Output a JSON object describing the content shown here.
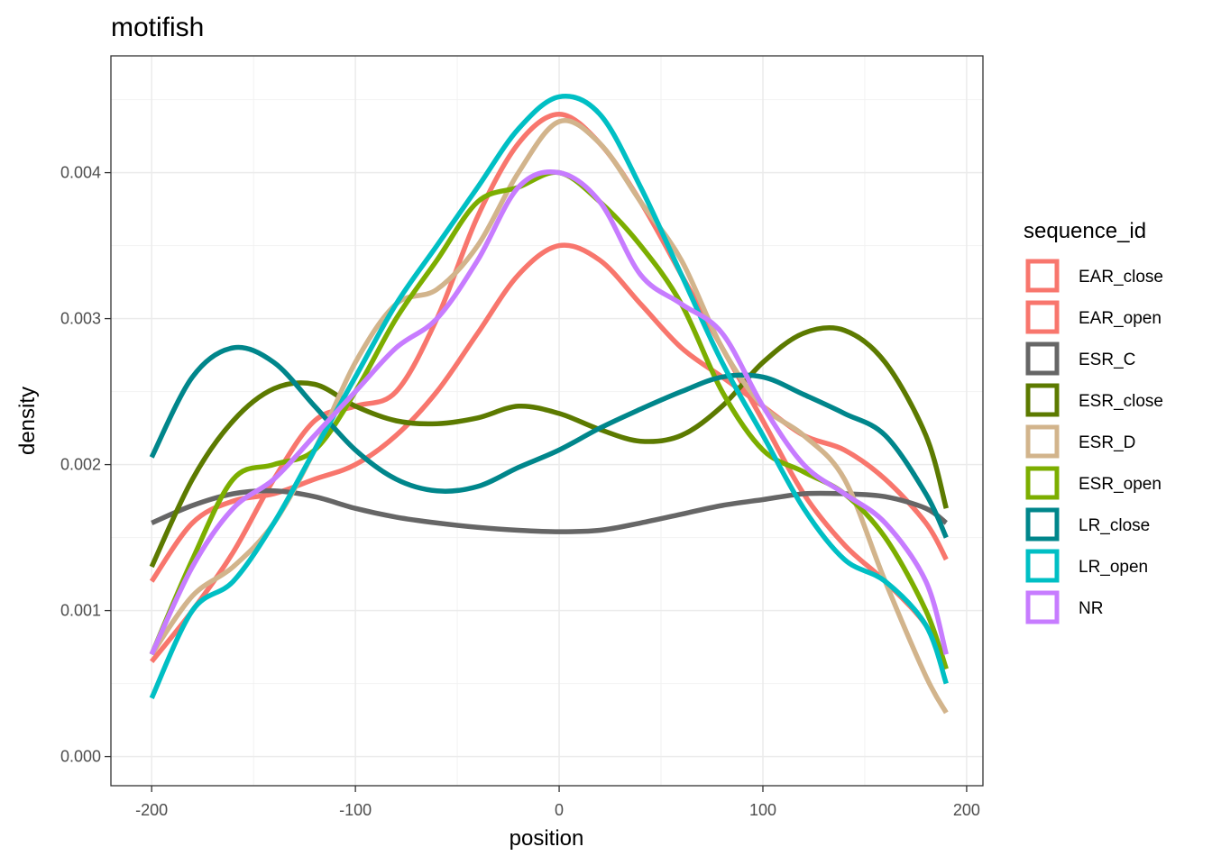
{
  "chart_data": {
    "type": "line",
    "title": "motifish",
    "xlabel": "position",
    "ylabel": "density",
    "xlim": [
      -220,
      208
    ],
    "ylim": [
      -0.0002,
      0.0048
    ],
    "x_ticks": [
      -200,
      -100,
      0,
      100,
      200
    ],
    "x_tick_labels": [
      "-200",
      "-100",
      "0",
      "100",
      "200"
    ],
    "y_ticks": [
      0,
      0.001,
      0.002,
      0.003,
      0.004
    ],
    "y_tick_labels": [
      "0.000",
      "0.001",
      "0.002",
      "0.003",
      "0.004"
    ],
    "grid": true,
    "legend_title": "sequence_id",
    "legend_position": "right",
    "series": [
      {
        "name": "EAR_close",
        "color": "#F8766D",
        "x": [
          -200,
          -180,
          -160,
          -140,
          -120,
          -100,
          -80,
          -60,
          -40,
          -20,
          0,
          20,
          40,
          60,
          80,
          100,
          120,
          140,
          160,
          180,
          190
        ],
        "y": [
          0.00065,
          0.001,
          0.0014,
          0.0019,
          0.0023,
          0.0024,
          0.0025,
          0.003,
          0.0037,
          0.0042,
          0.0044,
          0.0042,
          0.0038,
          0.0033,
          0.0028,
          0.0023,
          0.0018,
          0.00145,
          0.0012,
          0.0009,
          0.0006
        ]
      },
      {
        "name": "EAR_open",
        "color": "#F8766D",
        "x": [
          -200,
          -180,
          -160,
          -140,
          -120,
          -100,
          -80,
          -60,
          -40,
          -20,
          0,
          20,
          40,
          60,
          80,
          100,
          120,
          140,
          160,
          180,
          190
        ],
        "y": [
          0.0012,
          0.0016,
          0.00175,
          0.0018,
          0.0019,
          0.002,
          0.0022,
          0.0025,
          0.0029,
          0.0033,
          0.0035,
          0.0034,
          0.0031,
          0.0028,
          0.0026,
          0.0024,
          0.0022,
          0.0021,
          0.0019,
          0.0016,
          0.00135
        ]
      },
      {
        "name": "ESR_C",
        "color": "#666666",
        "x": [
          -200,
          -180,
          -160,
          -140,
          -120,
          -100,
          -80,
          -60,
          -40,
          -20,
          0,
          20,
          40,
          60,
          80,
          100,
          120,
          140,
          160,
          180,
          190
        ],
        "y": [
          0.0016,
          0.00172,
          0.0018,
          0.00182,
          0.00178,
          0.0017,
          0.00164,
          0.0016,
          0.00157,
          0.00155,
          0.00154,
          0.00155,
          0.0016,
          0.00166,
          0.00172,
          0.00176,
          0.0018,
          0.0018,
          0.00178,
          0.0017,
          0.0016
        ]
      },
      {
        "name": "ESR_close",
        "color": "#5C7A00",
        "x": [
          -200,
          -180,
          -160,
          -140,
          -120,
          -100,
          -80,
          -60,
          -40,
          -20,
          0,
          20,
          40,
          60,
          80,
          100,
          120,
          140,
          160,
          180,
          190
        ],
        "y": [
          0.0013,
          0.0019,
          0.0023,
          0.00252,
          0.00255,
          0.0024,
          0.0023,
          0.00228,
          0.00232,
          0.0024,
          0.00235,
          0.00224,
          0.00216,
          0.0022,
          0.0024,
          0.0027,
          0.0029,
          0.00292,
          0.0027,
          0.0022,
          0.0017
        ]
      },
      {
        "name": "ESR_D",
        "color": "#D2B48C",
        "x": [
          -200,
          -180,
          -160,
          -140,
          -120,
          -100,
          -80,
          -60,
          -40,
          -20,
          0,
          20,
          40,
          60,
          80,
          100,
          120,
          140,
          160,
          180,
          190
        ],
        "y": [
          0.0007,
          0.0011,
          0.0013,
          0.0016,
          0.0021,
          0.0027,
          0.0031,
          0.0032,
          0.0035,
          0.004,
          0.00435,
          0.0042,
          0.0038,
          0.0034,
          0.0028,
          0.0024,
          0.0022,
          0.0019,
          0.0012,
          0.00055,
          0.0003
        ]
      },
      {
        "name": "ESR_open",
        "color": "#7CAE00",
        "x": [
          -200,
          -180,
          -160,
          -140,
          -120,
          -100,
          -80,
          -60,
          -40,
          -20,
          0,
          20,
          40,
          60,
          80,
          100,
          120,
          140,
          160,
          180,
          190
        ],
        "y": [
          0.0007,
          0.00135,
          0.0019,
          0.002,
          0.0021,
          0.0025,
          0.003,
          0.0034,
          0.0038,
          0.0039,
          0.004,
          0.0038,
          0.0035,
          0.0031,
          0.0025,
          0.0021,
          0.00195,
          0.0018,
          0.0015,
          0.001,
          0.0006
        ]
      },
      {
        "name": "LR_close",
        "color": "#00868B",
        "x": [
          -200,
          -180,
          -160,
          -140,
          -120,
          -100,
          -80,
          -60,
          -40,
          -20,
          0,
          20,
          40,
          60,
          80,
          100,
          120,
          140,
          160,
          180,
          190
        ],
        "y": [
          0.00205,
          0.0026,
          0.0028,
          0.0027,
          0.0024,
          0.0021,
          0.0019,
          0.00182,
          0.00185,
          0.00198,
          0.0021,
          0.00225,
          0.00238,
          0.0025,
          0.0026,
          0.0026,
          0.00248,
          0.00235,
          0.0022,
          0.0018,
          0.0015
        ]
      },
      {
        "name": "LR_open",
        "color": "#00BFC4",
        "x": [
          -200,
          -180,
          -160,
          -140,
          -120,
          -100,
          -80,
          -60,
          -40,
          -20,
          0,
          20,
          40,
          60,
          80,
          100,
          120,
          140,
          160,
          180,
          190
        ],
        "y": [
          0.0004,
          0.001,
          0.0012,
          0.0016,
          0.0021,
          0.0026,
          0.0031,
          0.0035,
          0.0039,
          0.0043,
          0.00452,
          0.0044,
          0.0039,
          0.0033,
          0.0027,
          0.0022,
          0.0017,
          0.00135,
          0.0012,
          0.0009,
          0.0005
        ]
      },
      {
        "name": "NR",
        "color": "#C77CFF",
        "x": [
          -200,
          -180,
          -160,
          -140,
          -120,
          -100,
          -80,
          -60,
          -40,
          -20,
          0,
          20,
          40,
          60,
          80,
          100,
          120,
          140,
          160,
          180,
          190
        ],
        "y": [
          0.0007,
          0.0013,
          0.0017,
          0.0019,
          0.0022,
          0.0025,
          0.0028,
          0.003,
          0.0034,
          0.0039,
          0.004,
          0.0038,
          0.0033,
          0.0031,
          0.0029,
          0.0024,
          0.002,
          0.0018,
          0.0016,
          0.0012,
          0.0007
        ]
      }
    ]
  }
}
